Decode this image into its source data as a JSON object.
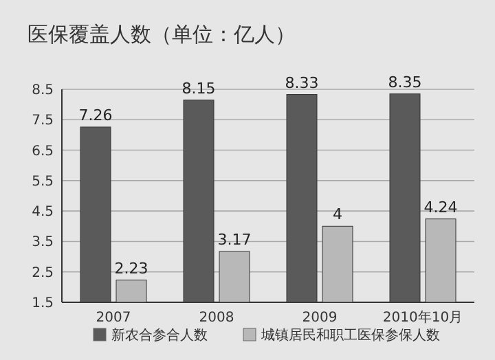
{
  "chart_data": {
    "type": "bar",
    "title": "医保覆盖人数（单位：亿人）",
    "categories": [
      "2007",
      "2008",
      "2009",
      "2010年10月"
    ],
    "series": [
      {
        "name": "新农合参合人数",
        "color": "#5a5a5a",
        "values": [
          7.26,
          8.15,
          8.33,
          8.35
        ]
      },
      {
        "name": "城镇居民和职工医保参保人数",
        "color": "#b8b8b8",
        "values": [
          2.23,
          3.17,
          4,
          4.24
        ]
      }
    ],
    "ylim": [
      1.5,
      8.5
    ],
    "yticks": [
      1.5,
      2.5,
      3.5,
      4.5,
      5.5,
      6.5,
      7.5,
      8.5
    ],
    "grid": "y",
    "legend": "bottom",
    "data_labels": true
  }
}
